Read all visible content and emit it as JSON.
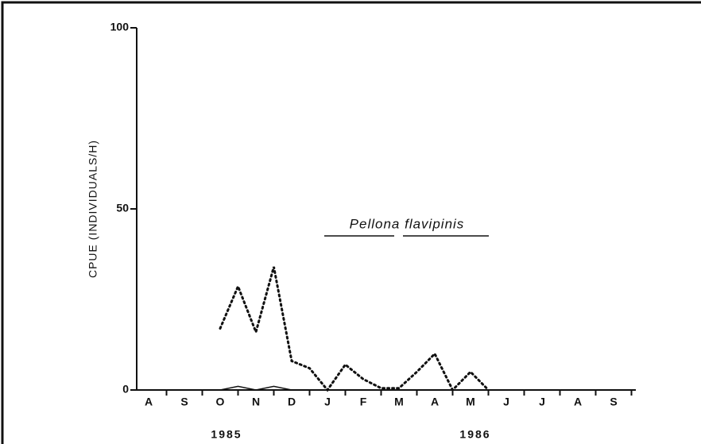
{
  "chart_data": {
    "type": "line",
    "title": "Pellona flavipinis",
    "y_label": "CPUE (INDIVIDUALS/H)",
    "year_labels": [
      "1985",
      "1986"
    ],
    "categories": [
      "A",
      null,
      "S",
      null,
      "O",
      null,
      "N",
      null,
      "D",
      null,
      "J",
      null,
      "F",
      null,
      "M",
      null,
      "A",
      null,
      "M",
      null,
      "J",
      null,
      "J",
      null,
      "A",
      null,
      "S",
      null
    ],
    "series": [
      {
        "color": "#111111",
        "style": "dotted",
        "values": [
          null,
          null,
          null,
          null,
          17,
          28.6,
          16,
          34,
          8,
          6,
          0,
          7,
          3,
          0.5,
          0.5,
          5,
          10,
          0,
          5,
          0,
          null,
          null,
          null,
          null,
          null,
          null,
          null,
          null
        ]
      },
      {
        "color": "#111111",
        "style": "solid",
        "values": [
          0,
          0,
          0,
          0,
          0,
          1,
          0,
          1,
          0,
          0,
          0,
          0,
          0,
          0,
          0,
          0,
          0,
          0,
          0,
          0,
          0,
          0,
          0,
          0,
          0,
          0,
          0,
          0
        ]
      }
    ],
    "ylim": [
      0,
      100
    ],
    "yticks": [
      0,
      50,
      100
    ]
  }
}
